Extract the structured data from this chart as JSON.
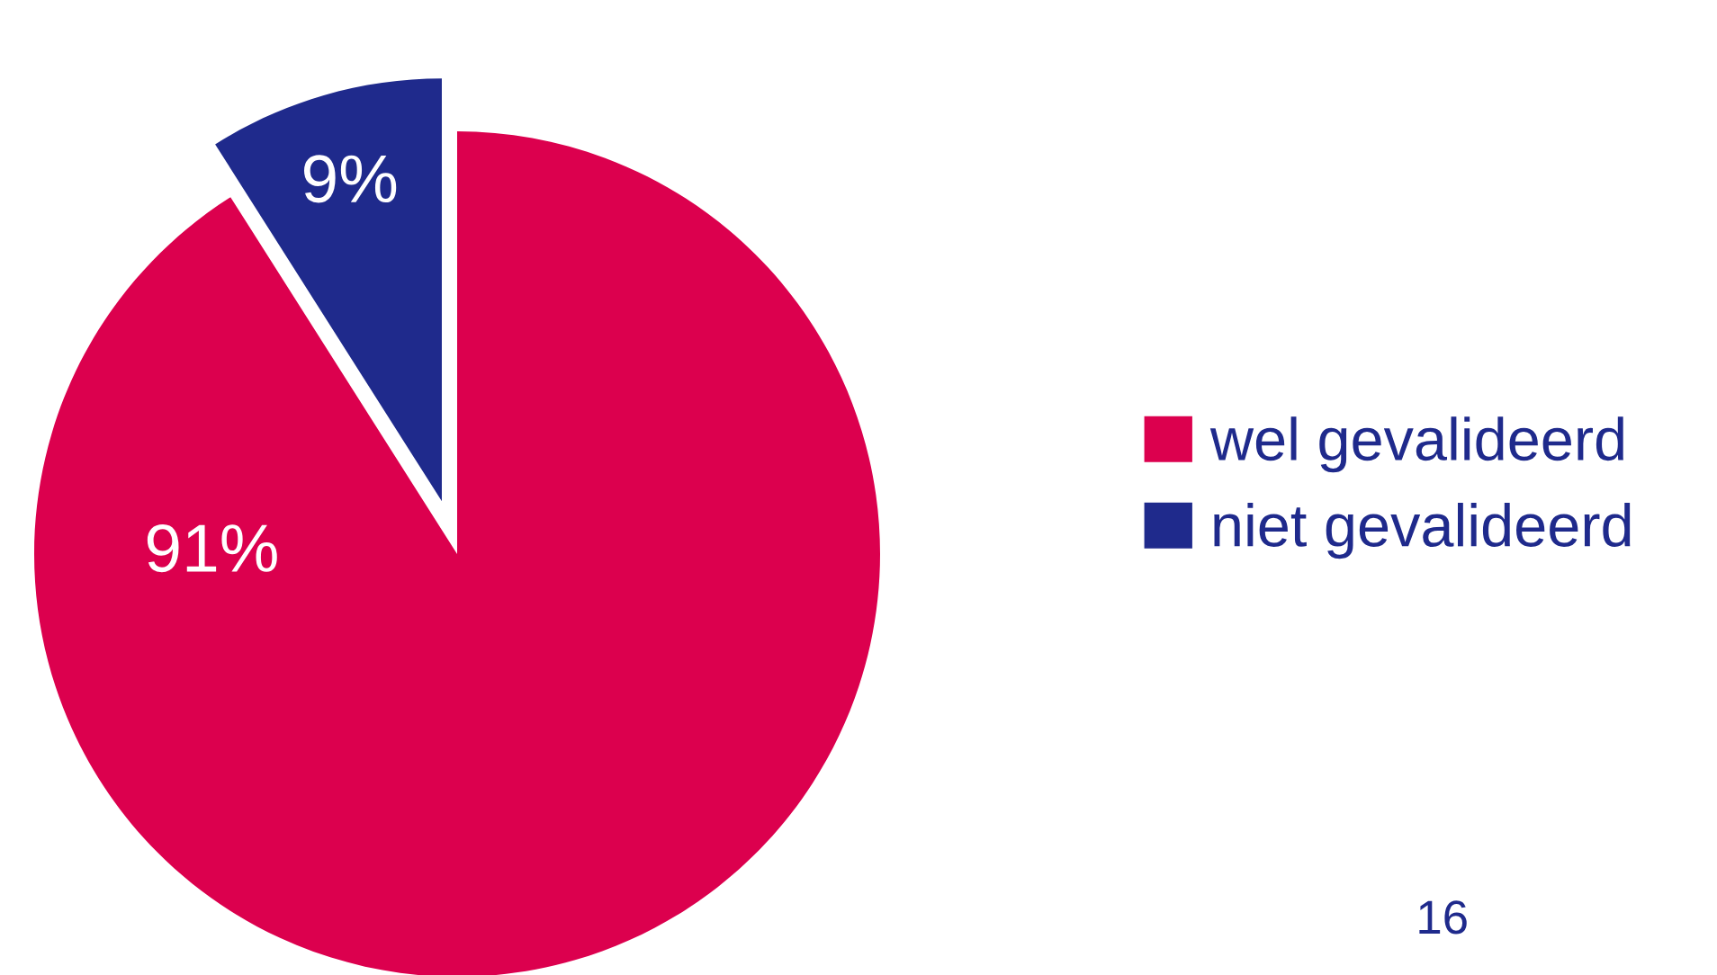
{
  "chart_data": {
    "type": "pie",
    "categories": [
      "wel gevalideerd",
      "niet gevalideerd"
    ],
    "values": [
      91,
      9
    ],
    "colors": [
      "#dc004e",
      "#1f2a8c"
    ],
    "value_labels": [
      "91%",
      "9%"
    ],
    "legend": "right",
    "annotations": [
      "16"
    ]
  }
}
